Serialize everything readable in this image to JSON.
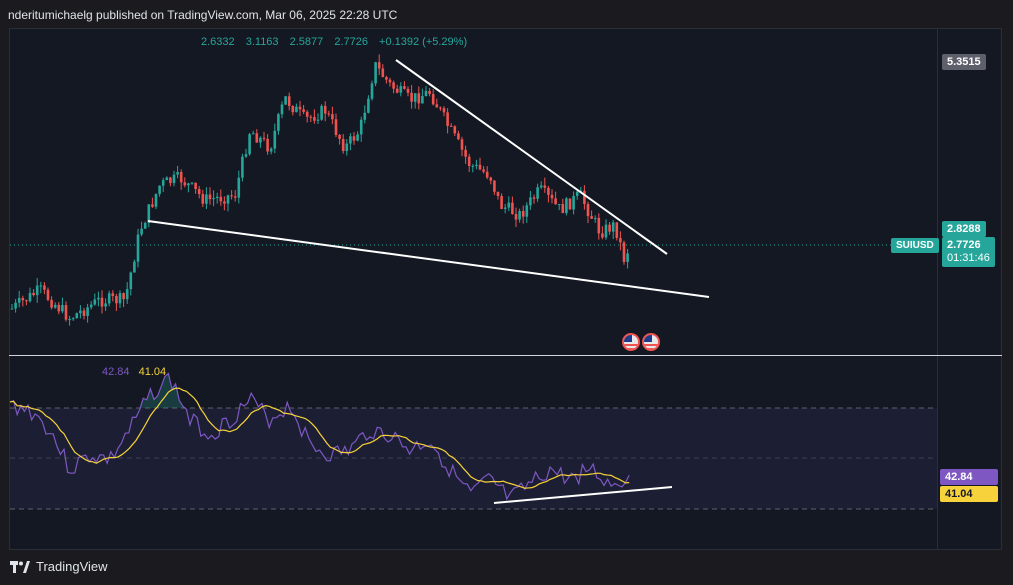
{
  "header": {
    "publisher_line": "nderitumichaelg published on TradingView.com, Mar 06, 2025 22:28 UTC"
  },
  "ohlc": {
    "open": "2.6332",
    "high": "3.1163",
    "low": "2.5877",
    "close": "2.7726",
    "change": "+0.1392 (+5.29%)"
  },
  "price_axis": {
    "high_label": "5.3515",
    "last_label": "2.8288",
    "current_price": "2.7726",
    "countdown": "01:31:46",
    "symbol": "SUIUSD"
  },
  "rsi": {
    "value": "42.84",
    "ma": "41.04"
  },
  "footer": {
    "brand": "TradingView"
  },
  "colors": {
    "up": "#26a69a",
    "down": "#ef5350",
    "rsi": "#7e57c2",
    "rsi_ma": "#f7d23a",
    "background": "#141823"
  }
}
